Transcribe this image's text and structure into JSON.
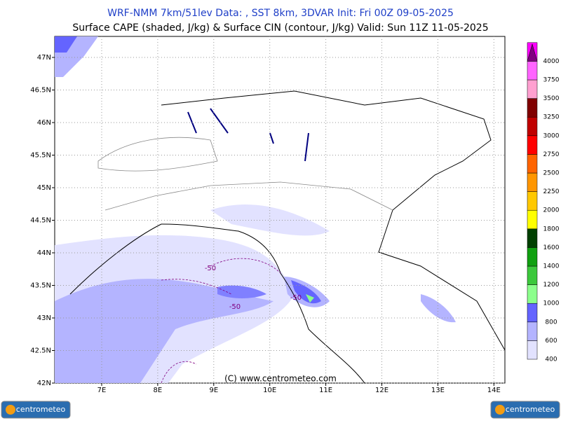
{
  "header": {
    "title": "WRF-NMM 7km/51lev  Data: , SST 8km, 3DVAR  Init: Fri 00Z 09-05-2025",
    "subtitle": "Surface CAPE (shaded, J/kg) & Surface CIN (contour, J/kg)  Valid: Sun 11Z 11-05-2025"
  },
  "map": {
    "lat_labels": [
      "47N",
      "46.5N",
      "46N",
      "45.5N",
      "45N",
      "44.5N",
      "44N",
      "43.5N",
      "43N",
      "42.5N",
      "42N"
    ],
    "lon_labels": [
      "7E",
      "8E",
      "9E",
      "10E",
      "11E",
      "12E",
      "13E",
      "14E"
    ],
    "contour_labels": [
      "-50",
      "-50",
      "-50"
    ],
    "copyright": "(C) www.centrometeo.com"
  },
  "legend": {
    "levels": [
      {
        "value": 400,
        "color": "#e2e2ff"
      },
      {
        "value": 600,
        "color": "#b4b4ff"
      },
      {
        "value": 800,
        "color": "#6464ff"
      },
      {
        "value": 1000,
        "color": "#8cff8c"
      },
      {
        "value": 1200,
        "color": "#3cc83c"
      },
      {
        "value": 1400,
        "color": "#10a010"
      },
      {
        "value": 1600,
        "color": "#004000"
      },
      {
        "value": 1800,
        "color": "#ffff00"
      },
      {
        "value": 2000,
        "color": "#ffc800"
      },
      {
        "value": 2250,
        "color": "#ff9600"
      },
      {
        "value": 2500,
        "color": "#ff6400"
      },
      {
        "value": 2750,
        "color": "#ff0000"
      },
      {
        "value": 3000,
        "color": "#c00000"
      },
      {
        "value": 3250,
        "color": "#800000"
      },
      {
        "value": 3500,
        "color": "#ffa0d0"
      },
      {
        "value": 3750,
        "color": "#ff64ff"
      },
      {
        "value": 4000,
        "color": "#ff00ff"
      }
    ],
    "top_color": "#800080"
  },
  "logos": {
    "left": "centrometeo",
    "right": "centrometeo"
  }
}
